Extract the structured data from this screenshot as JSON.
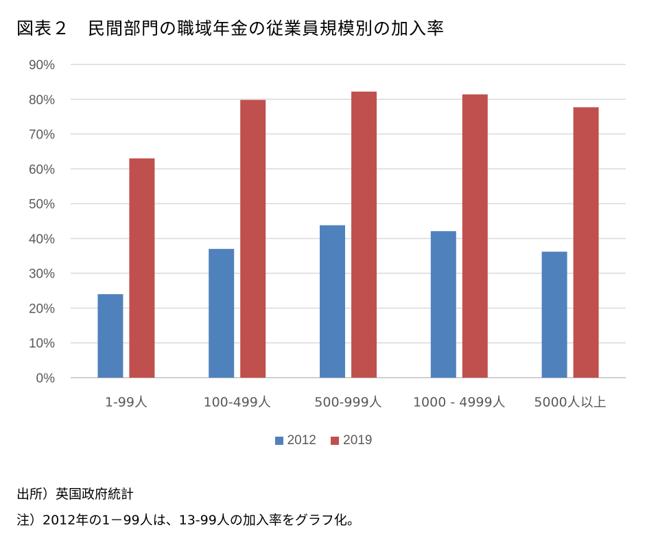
{
  "title": "図表２　民間部門の職域年金の従業員規模別の加入率",
  "chart_data": {
    "type": "bar",
    "categories": [
      "1-99人",
      "100-499人",
      "500-999人",
      "1000 - 4999人",
      "5000人以上"
    ],
    "series": [
      {
        "name": "2012",
        "color": "#4f81bd",
        "values": [
          24,
          37,
          43.8,
          42.1,
          36.2
        ]
      },
      {
        "name": "2019",
        "color": "#c0504d",
        "values": [
          63,
          79.8,
          82.2,
          81.4,
          77.7
        ]
      }
    ],
    "ylim": [
      0,
      90
    ],
    "yticks": [
      "0%",
      "10%",
      "20%",
      "30%",
      "40%",
      "50%",
      "60%",
      "70%",
      "80%",
      "90%"
    ],
    "grid": true,
    "legend_position": "bottom"
  },
  "notes": {
    "source": "出所）英国政府統計",
    "footnote": "注）2012年の1－99人は、13-99人の加入率をグラフ化。"
  }
}
